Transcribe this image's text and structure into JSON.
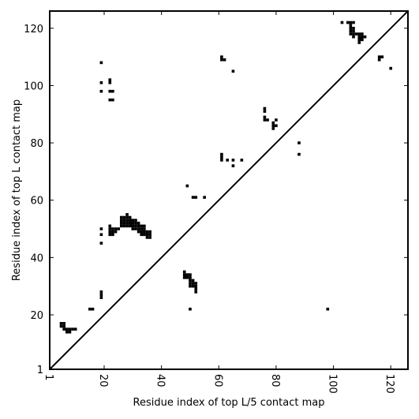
{
  "chart_data": {
    "type": "heatmap",
    "xlabel": "Residue index of top L/5 contact map",
    "ylabel": "Residue index of top L contact map",
    "xlim": [
      1,
      126
    ],
    "ylim": [
      1,
      126
    ],
    "xticks": [
      1,
      20,
      40,
      60,
      80,
      100,
      120
    ],
    "yticks": [
      1,
      20,
      40,
      60,
      80,
      100,
      120
    ],
    "xtick_labels": [
      "1",
      "20",
      "40",
      "60",
      "80",
      "100",
      "120"
    ],
    "ytick_labels": [
      "1",
      "20",
      "40",
      "60",
      "80",
      "100",
      "120"
    ],
    "diagonal": {
      "from": [
        1,
        1
      ],
      "to": [
        126,
        126
      ]
    },
    "grid": false,
    "color": "#000000",
    "contacts": [
      [
        5,
        16
      ],
      [
        5,
        17
      ],
      [
        6,
        16
      ],
      [
        6,
        17
      ],
      [
        6,
        15
      ],
      [
        7,
        14
      ],
      [
        7,
        15
      ],
      [
        8,
        14
      ],
      [
        8,
        15
      ],
      [
        9,
        15
      ],
      [
        10,
        15
      ],
      [
        15,
        22
      ],
      [
        16,
        22
      ],
      [
        19,
        26
      ],
      [
        19,
        27
      ],
      [
        19,
        28
      ],
      [
        19,
        45
      ],
      [
        19,
        48
      ],
      [
        19,
        50
      ],
      [
        19,
        98
      ],
      [
        19,
        101
      ],
      [
        19,
        108
      ],
      [
        22,
        98
      ],
      [
        23,
        98
      ],
      [
        22,
        101
      ],
      [
        22,
        102
      ],
      [
        22,
        95
      ],
      [
        23,
        95
      ],
      [
        22,
        48
      ],
      [
        23,
        48
      ],
      [
        22,
        49
      ],
      [
        23,
        49
      ],
      [
        22,
        50
      ],
      [
        22,
        51
      ],
      [
        23,
        50
      ],
      [
        24,
        50
      ],
      [
        25,
        50
      ],
      [
        24,
        49
      ],
      [
        26,
        51
      ],
      [
        26,
        52
      ],
      [
        26,
        53
      ],
      [
        26,
        54
      ],
      [
        27,
        51
      ],
      [
        27,
        52
      ],
      [
        27,
        53
      ],
      [
        27,
        54
      ],
      [
        28,
        51
      ],
      [
        28,
        52
      ],
      [
        28,
        53
      ],
      [
        28,
        54
      ],
      [
        28,
        55
      ],
      [
        29,
        51
      ],
      [
        29,
        52
      ],
      [
        29,
        53
      ],
      [
        29,
        54
      ],
      [
        30,
        50
      ],
      [
        30,
        51
      ],
      [
        30,
        52
      ],
      [
        30,
        53
      ],
      [
        31,
        50
      ],
      [
        31,
        51
      ],
      [
        31,
        52
      ],
      [
        31,
        53
      ],
      [
        32,
        49
      ],
      [
        32,
        50
      ],
      [
        32,
        51
      ],
      [
        32,
        52
      ],
      [
        33,
        48
      ],
      [
        33,
        49
      ],
      [
        33,
        50
      ],
      [
        33,
        51
      ],
      [
        34,
        48
      ],
      [
        34,
        49
      ],
      [
        34,
        50
      ],
      [
        34,
        51
      ],
      [
        35,
        47
      ],
      [
        35,
        48
      ],
      [
        35,
        49
      ],
      [
        36,
        47
      ],
      [
        36,
        48
      ],
      [
        36,
        49
      ],
      [
        48,
        33
      ],
      [
        48,
        34
      ],
      [
        48,
        35
      ],
      [
        49,
        33
      ],
      [
        49,
        34
      ],
      [
        50,
        33
      ],
      [
        50,
        34
      ],
      [
        50,
        30
      ],
      [
        50,
        31
      ],
      [
        50,
        32
      ],
      [
        51,
        30
      ],
      [
        51,
        31
      ],
      [
        51,
        32
      ],
      [
        52,
        28
      ],
      [
        52,
        29
      ],
      [
        52,
        30
      ],
      [
        52,
        31
      ],
      [
        50,
        22
      ],
      [
        49,
        65
      ],
      [
        51,
        61
      ],
      [
        52,
        61
      ],
      [
        55,
        61
      ],
      [
        61,
        74
      ],
      [
        61,
        75
      ],
      [
        61,
        76
      ],
      [
        63,
        74
      ],
      [
        65,
        74
      ],
      [
        65,
        72
      ],
      [
        68,
        74
      ],
      [
        61,
        109
      ],
      [
        61,
        110
      ],
      [
        62,
        109
      ],
      [
        65,
        105
      ],
      [
        76,
        88
      ],
      [
        76,
        89
      ],
      [
        77,
        88
      ],
      [
        76,
        91
      ],
      [
        76,
        92
      ],
      [
        79,
        85
      ],
      [
        79,
        86
      ],
      [
        79,
        87
      ],
      [
        80,
        86
      ],
      [
        80,
        88
      ],
      [
        88,
        76
      ],
      [
        88,
        80
      ],
      [
        98,
        22
      ],
      [
        103,
        122
      ],
      [
        105,
        122
      ],
      [
        106,
        122
      ],
      [
        107,
        122
      ],
      [
        106,
        121
      ],
      [
        106,
        120
      ],
      [
        106,
        119
      ],
      [
        106,
        118
      ],
      [
        107,
        120
      ],
      [
        107,
        119
      ],
      [
        107,
        118
      ],
      [
        107,
        117
      ],
      [
        108,
        118
      ],
      [
        109,
        118
      ],
      [
        110,
        118
      ],
      [
        109,
        117
      ],
      [
        110,
        117
      ],
      [
        111,
        117
      ],
      [
        109,
        116
      ],
      [
        110,
        116
      ],
      [
        109,
        115
      ],
      [
        116,
        110
      ],
      [
        117,
        110
      ],
      [
        116,
        109
      ],
      [
        120,
        106
      ]
    ]
  }
}
